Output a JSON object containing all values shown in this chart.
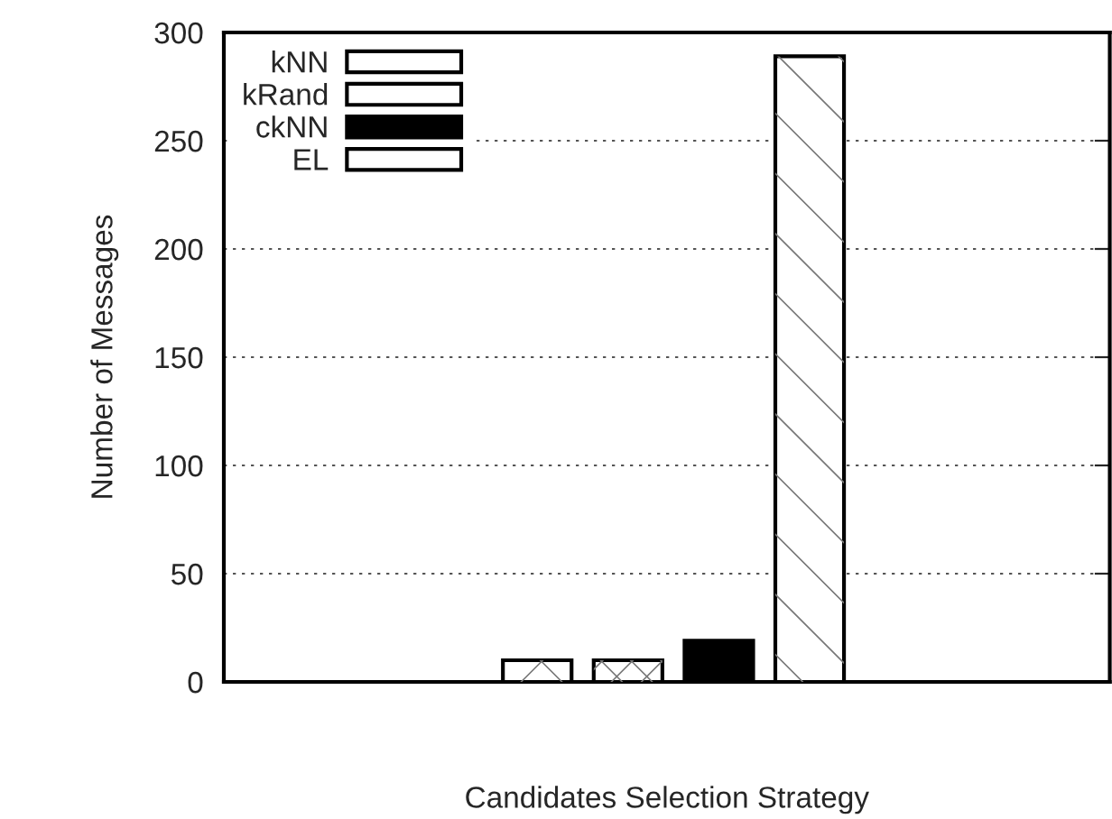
{
  "chart_data": {
    "type": "bar",
    "xlabel": "Candidates Selection Strategy",
    "ylabel": "Number of Messages",
    "categories": [
      null
    ],
    "series": [
      {
        "name": "kNN",
        "color": "#ffffff",
        "values": [
          10
        ]
      },
      {
        "name": "kRand",
        "color": "#ffffff",
        "values": [
          10
        ]
      },
      {
        "name": "ckNN",
        "color": "#000000",
        "values": [
          19
        ]
      },
      {
        "name": "EL",
        "color": "#ffffff",
        "values": [
          289
        ]
      }
    ],
    "ylim": [
      0,
      300
    ],
    "yticks": [
      0,
      50,
      100,
      150,
      200,
      250,
      300
    ],
    "grid": "y",
    "legend": "top left"
  }
}
